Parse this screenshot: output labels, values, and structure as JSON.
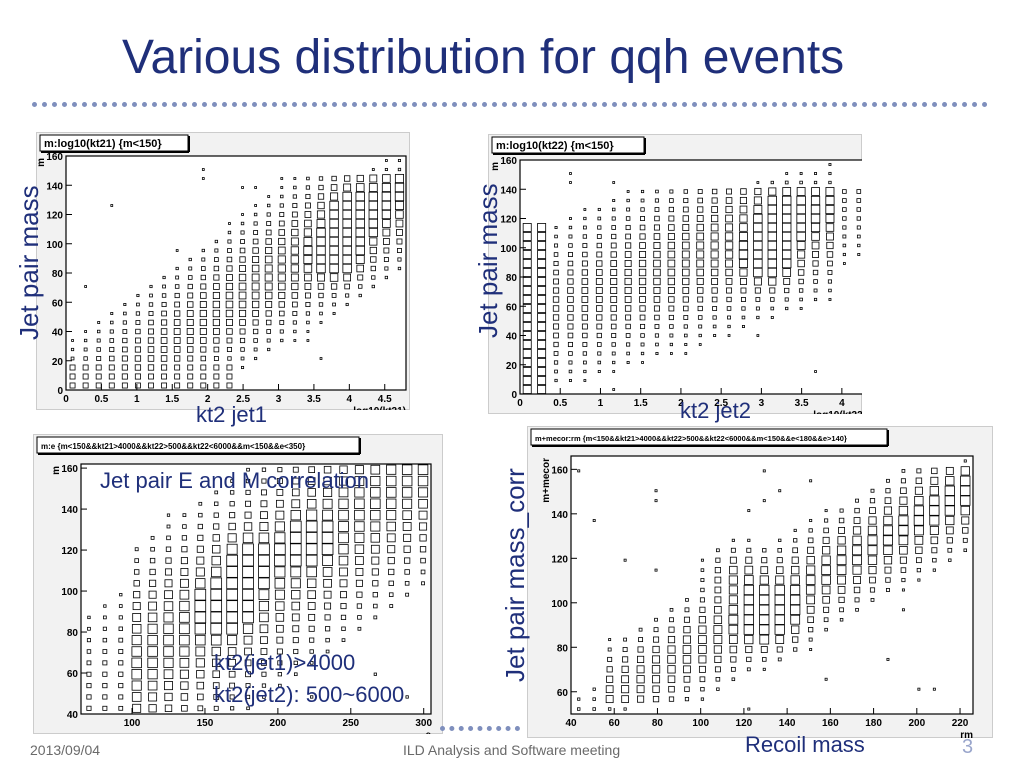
{
  "slide": {
    "title": "Various distribution for qqh events",
    "footer_date": "2013/09/04",
    "footer_center": "ILD Analysis and Software meeting",
    "page_number": "3"
  },
  "annotations": {
    "ylabel_left_top": "Jet pair mass",
    "ylabel_mid_top": "Jet pair mass",
    "xlabel_p1": "kt2 jet1",
    "xlabel_p2": "kt2 jet2",
    "p3_label": "Jet pair E and M correlation",
    "p3_cut_line1": "kt2(jet1)>4000",
    "p3_cut_line2": "kt2(jet2): 500~6000",
    "ylabel_p4": "Jet pair mass_corr",
    "xlabel_p4": "Recoil mass"
  },
  "chart_data": [
    {
      "type": "heatmap",
      "panel_title": "m:log10(kt21) {m<150}",
      "xlabel": "log10(kt21)",
      "ylabel": "m",
      "xlim": [
        0,
        4.8
      ],
      "ylim": [
        0,
        160
      ],
      "xticks": [
        "0",
        "0.5",
        "1",
        "1.5",
        "2",
        "2.5",
        "3",
        "3.5",
        "4",
        "4.5"
      ],
      "yticks": [
        "0",
        "20",
        "40",
        "60",
        "80",
        "100",
        "120",
        "140",
        "160"
      ],
      "hotspots": [
        {
          "x": 3.85,
          "y": 92,
          "w": 1.0
        },
        {
          "x": 4.05,
          "y": 120,
          "w": 0.8
        }
      ]
    },
    {
      "type": "heatmap",
      "panel_title": "m:log10(kt22) {m<150}",
      "xlabel": "log10(kt22)",
      "ylabel": "m",
      "xlim": [
        0,
        4.3
      ],
      "ylim": [
        0,
        160
      ],
      "xticks": [
        "0",
        "0.5",
        "1",
        "1.5",
        "2",
        "2.5",
        "3",
        "3.5",
        "4"
      ],
      "yticks": [
        "0",
        "20",
        "40",
        "60",
        "80",
        "100",
        "120",
        "140",
        "160"
      ],
      "hotspots": [
        {
          "x": 3.1,
          "y": 92,
          "w": 1.0
        },
        {
          "x": 3.3,
          "y": 120,
          "w": 0.8
        }
      ]
    },
    {
      "type": "heatmap",
      "panel_title": "m:e {m<150&&kt21>4000&&kt22>500&&kt22<6000&&m<150&&e<350}",
      "xlabel": "e",
      "ylabel": "m",
      "xlim": [
        65,
        305
      ],
      "ylim": [
        40,
        162
      ],
      "xticks": [
        "100",
        "150",
        "200",
        "250",
        "300"
      ],
      "yticks": [
        "40",
        "60",
        "80",
        "100",
        "120",
        "140",
        "160"
      ],
      "hotspots": [
        {
          "x": 163,
          "y": 92,
          "w": 1.0
        },
        {
          "x": 180,
          "y": 115,
          "w": 0.6
        },
        {
          "x": 220,
          "y": 125,
          "w": 0.6
        }
      ]
    },
    {
      "type": "heatmap",
      "panel_title": "m+mecor:rm {m<150&&kt21>4000&&kt22>500&&kt22<6000&&m<150&&e<180&&e>140}",
      "xlabel": "rm",
      "ylabel": "m+mecor",
      "xlim": [
        40,
        226
      ],
      "ylim": [
        50,
        166
      ],
      "xticks": [
        "40",
        "60",
        "80",
        "100",
        "120",
        "140",
        "160",
        "180",
        "200",
        "220"
      ],
      "yticks": [
        "60",
        "80",
        "100",
        "120",
        "140",
        "160"
      ],
      "hotspots": [
        {
          "x": 132,
          "y": 93,
          "w": 1.0
        },
        {
          "x": 118,
          "y": 112,
          "w": 0.5
        }
      ]
    }
  ]
}
